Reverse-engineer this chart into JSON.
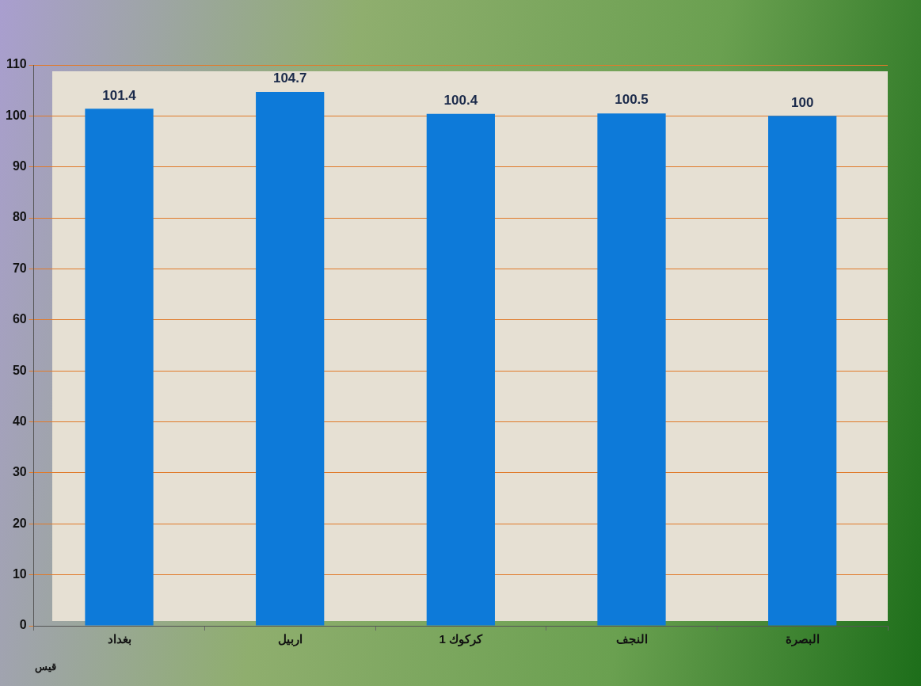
{
  "chart_data": {
    "type": "bar",
    "categories": [
      "بغداد",
      "اربيل",
      "كركوك 1",
      "النجف",
      "البصرة"
    ],
    "values": [
      101.4,
      104.7,
      100.4,
      100.5,
      100
    ],
    "color": "#0d7ad9",
    "ylim": [
      0,
      110
    ],
    "yticks": [
      0,
      10,
      20,
      30,
      40,
      50,
      60,
      70,
      80,
      90,
      100,
      110
    ],
    "grid": "y",
    "legend": false,
    "data_labels": true,
    "annotations": [
      "قيس"
    ]
  }
}
